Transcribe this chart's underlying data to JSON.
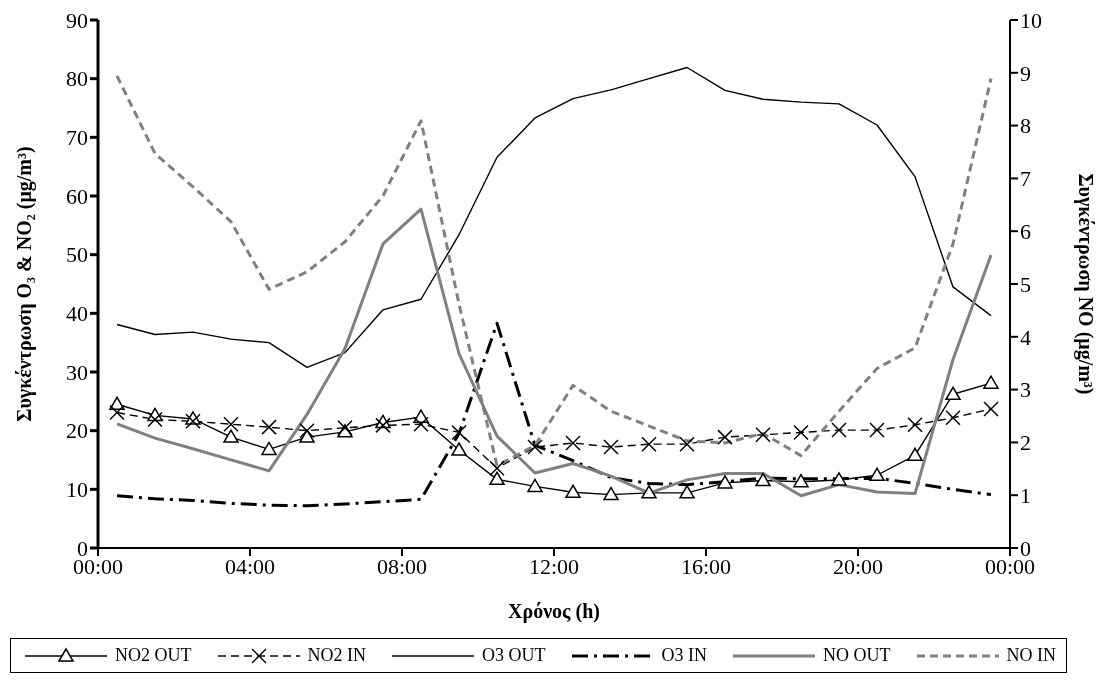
{
  "chart_data": {
    "type": "line",
    "xlabel": "Χρόνος (h)",
    "ylabel": "Συγκέντρωση O₃ & NO₂ (μg/m³)",
    "y2label": "Συγκέντρωση NO (μg/m³)",
    "x": [
      0.5,
      1.5,
      2.5,
      3.5,
      4.5,
      5.5,
      6.5,
      7.5,
      8.5,
      9.5,
      10.5,
      11.5,
      12.5,
      13.5,
      14.5,
      15.5,
      16.5,
      17.5,
      18.5,
      19.5,
      20.5,
      21.5,
      22.5,
      23.5
    ],
    "xlim": [
      0,
      24
    ],
    "xticks": [
      {
        "value": 0,
        "label": "00:00"
      },
      {
        "value": 4,
        "label": "04:00"
      },
      {
        "value": 8,
        "label": "08:00"
      },
      {
        "value": 12,
        "label": "12:00"
      },
      {
        "value": 16,
        "label": "16:00"
      },
      {
        "value": 20,
        "label": "20:00"
      },
      {
        "value": 24,
        "label": "00:00"
      }
    ],
    "ylim": [
      0,
      90
    ],
    "yticks": [
      0,
      10,
      20,
      30,
      40,
      50,
      60,
      70,
      80,
      90
    ],
    "y2lim": [
      0,
      10
    ],
    "y2ticks": [
      0,
      1,
      2,
      3,
      4,
      5,
      6,
      7,
      8,
      9,
      10
    ],
    "legend": "bottom",
    "grid": false,
    "series": [
      {
        "name": "NO2 OUT",
        "color": "#000000",
        "marker": "triangle",
        "line_style": "solid",
        "values": [
          24.5,
          22.6,
          22,
          18.9,
          16.8,
          18.9,
          19.8,
          21.4,
          22.3,
          16.7,
          11.7,
          10.5,
          9.5,
          9.1,
          9.4,
          9.4,
          11.1,
          11.5,
          11.3,
          11.6,
          12.4,
          15.8,
          26.2,
          28.1
        ]
      },
      {
        "name": "NO2 IN",
        "color": "#000000",
        "marker": "cross",
        "line_style": "dashed",
        "values": [
          23.1,
          21.9,
          21.6,
          21.1,
          20.6,
          20,
          20.5,
          20.9,
          21.1,
          19.7,
          13.6,
          17.2,
          17.9,
          17.2,
          17.7,
          17.7,
          18.9,
          19.3,
          19.7,
          20.1,
          20.1,
          21,
          22.2,
          23.7
        ]
      },
      {
        "name": "O3 OUT",
        "color": "#000000",
        "marker": "none",
        "line_style": "solid",
        "values": [
          38.1,
          36.4,
          36.8,
          35.6,
          35,
          30.8,
          33.3,
          40.6,
          42.4,
          53.4,
          66.6,
          73.3,
          76.6,
          78.1,
          80,
          81.9,
          78,
          76.5,
          76,
          75.7,
          72.1,
          63.3,
          44.5,
          39.6
        ]
      },
      {
        "name": "O3 IN",
        "color": "#000000",
        "marker": "none",
        "line_style": "dashdot",
        "values": [
          8.9,
          8.4,
          8.1,
          7.6,
          7.3,
          7.2,
          7.5,
          7.9,
          8.3,
          19.5,
          38.3,
          17.5,
          14.9,
          12,
          11,
          10.8,
          11.3,
          11.9,
          11.8,
          11.8,
          11.9,
          11,
          10,
          9.1
        ]
      },
      {
        "name": "NO OUT",
        "color": "#808080",
        "marker": "none",
        "line_style": "solid",
        "axis": "y2",
        "values": [
          2.35,
          2.08,
          1.88,
          1.67,
          1.46,
          2.53,
          3.78,
          5.76,
          6.42,
          3.68,
          2.12,
          1.42,
          1.6,
          1.36,
          1.04,
          1.29,
          1.41,
          1.41,
          0.99,
          1.2,
          1.06,
          1.03,
          3.57,
          5.55
        ]
      },
      {
        "name": "NO IN",
        "color": "#808080",
        "marker": "none",
        "line_style": "dashed",
        "axis": "y2",
        "values": [
          8.94,
          7.47,
          6.84,
          6.18,
          4.9,
          5.23,
          5.8,
          6.67,
          8.09,
          4.62,
          1.56,
          1.94,
          3.08,
          2.59,
          2.31,
          2.03,
          1.99,
          2.17,
          1.75,
          2.59,
          3.4,
          3.79,
          5.76,
          8.89
        ]
      }
    ]
  }
}
